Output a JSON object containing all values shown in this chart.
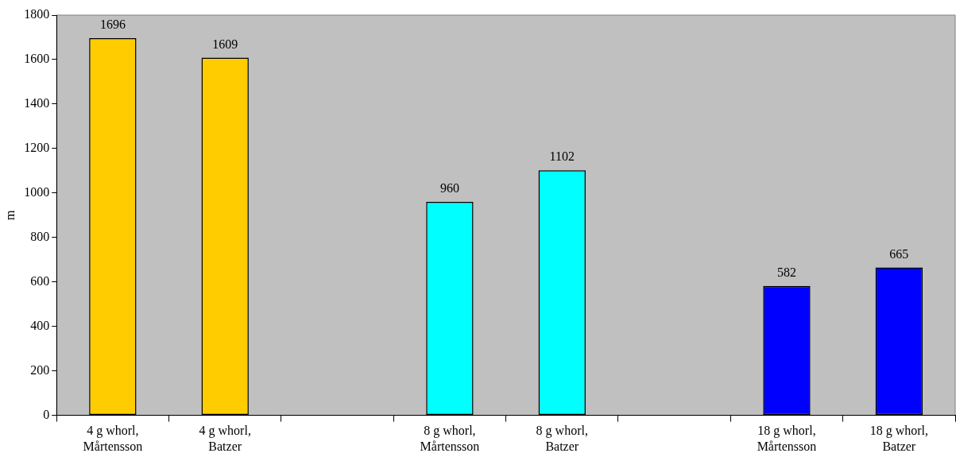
{
  "chart_data": {
    "type": "bar",
    "ylabel": "m",
    "categories": [
      "4 g whorl, Mårtensson",
      "4 g whorl, Batzer",
      null,
      "8 g whorl, Mårtensson",
      "8 g whorl, Batzer",
      null,
      "18 g whorl, Mårtensson",
      "18 g whorl, Batzer"
    ],
    "values": [
      1696,
      1609,
      null,
      960,
      1102,
      null,
      582,
      665
    ],
    "colors": [
      "#ffcc00",
      "#ffcc00",
      null,
      "#00ffff",
      "#00ffff",
      null,
      "#0000ff",
      "#0000ff"
    ],
    "ylim": [
      0,
      1800
    ],
    "yticks": [
      0,
      200,
      400,
      600,
      800,
      1000,
      1200,
      1400,
      1600,
      1800
    ],
    "data_labels": true,
    "grid": false,
    "legend": false
  }
}
